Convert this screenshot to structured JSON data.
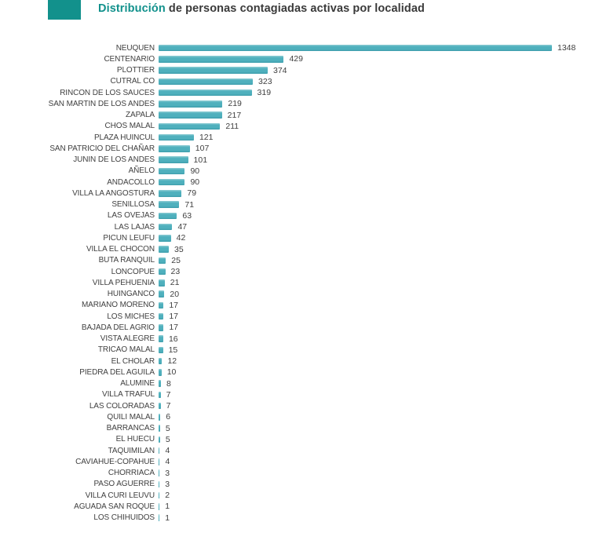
{
  "header": {
    "title_accent": "Distribución",
    "title_rest": " de personas contagiadas activas por localidad"
  },
  "colors": {
    "accent_teal": "#12918c",
    "title_dark": "#3a3a3a",
    "bar_fill": "#4fb0bd",
    "text": "#404040"
  },
  "chart_data": {
    "type": "bar",
    "orientation": "horizontal",
    "title": "Distribución de personas contagiadas activas por localidad",
    "xlabel": "",
    "ylabel": "",
    "xlim": [
      0,
      1348
    ],
    "grid": false,
    "legend": false,
    "value_labels": true,
    "categories": [
      "NEUQUEN",
      "CENTENARIO",
      "PLOTTIER",
      "CUTRAL CO",
      "RINCON DE LOS SAUCES",
      "SAN MARTIN DE LOS ANDES",
      "ZAPALA",
      "CHOS MALAL",
      "PLAZA HUINCUL",
      "SAN PATRICIO DEL CHAÑAR",
      "JUNIN DE LOS ANDES",
      "AÑELO",
      "ANDACOLLO",
      "VILLA LA ANGOSTURA",
      "SENILLOSA",
      "LAS OVEJAS",
      "LAS LAJAS",
      "PICUN LEUFU",
      "VILLA EL CHOCON",
      "BUTA RANQUIL",
      "LONCOPUE",
      "VILLA PEHUENIA",
      "HUINGANCO",
      "MARIANO MORENO",
      "LOS MICHES",
      "BAJADA DEL AGRIO",
      "VISTA ALEGRE",
      "TRICAO MALAL",
      "EL CHOLAR",
      "PIEDRA DEL AGUILA",
      "ALUMINE",
      "VILLA TRAFUL",
      "LAS COLORADAS",
      "QUILI MALAL",
      "BARRANCAS",
      "EL HUECU",
      "TAQUIMILAN",
      "CAVIAHUE-COPAHUE",
      "CHORRIACA",
      "PASO AGUERRE",
      "VILLA CURI LEUVU",
      "AGUADA SAN ROQUE",
      "LOS CHIHUIDOS"
    ],
    "values": [
      1348,
      429,
      374,
      323,
      319,
      219,
      217,
      211,
      121,
      107,
      101,
      90,
      90,
      79,
      71,
      63,
      47,
      42,
      35,
      25,
      23,
      21,
      20,
      17,
      17,
      17,
      16,
      15,
      12,
      10,
      8,
      7,
      7,
      6,
      5,
      5,
      4,
      4,
      3,
      3,
      2,
      1,
      1
    ]
  }
}
